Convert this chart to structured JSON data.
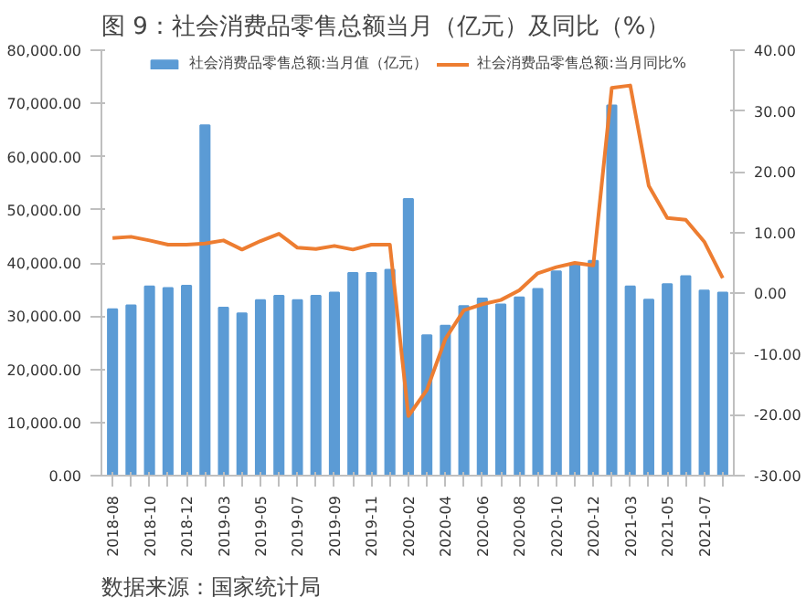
{
  "chart_data": {
    "type": "bar",
    "title": "图 9：社会消费品零售总额当月（亿元）及同比（%）",
    "categories": [
      "2018-08",
      null,
      "2018-10",
      null,
      "2018-12",
      null,
      "2019-03",
      null,
      "2019-05",
      null,
      "2019-07",
      null,
      "2019-09",
      null,
      "2019-11",
      null,
      "2020-02",
      null,
      "2020-04",
      null,
      "2020-06",
      null,
      "2020-08",
      null,
      "2020-10",
      null,
      "2020-12",
      null,
      "2021-03",
      null,
      "2021-05",
      null,
      "2021-07",
      null
    ],
    "series": [
      {
        "name": "社会消费品零售总额:当月值（亿元）",
        "color": "#5b9bd5",
        "values": [
          31300,
          32000,
          35600,
          35300,
          35700,
          65900,
          31600,
          30500,
          33000,
          33800,
          33000,
          33800,
          34400,
          38100,
          38100,
          38700,
          52000,
          26400,
          28200,
          31900,
          33300,
          32200,
          33500,
          35100,
          38400,
          39600,
          40400,
          69600,
          35600,
          33100,
          36000,
          37500,
          34800,
          34400
        ]
      },
      {
        "name": "社会消费品零售总额:当月同比%",
        "type": "line",
        "axis": "y2",
        "color": "#ed7d31",
        "values": [
          9.1,
          9.3,
          8.7,
          8.0,
          8.0,
          8.2,
          8.7,
          7.2,
          8.6,
          9.8,
          7.5,
          7.3,
          7.8,
          7.2,
          8.0,
          8.0,
          -20.2,
          -15.9,
          -7.5,
          -2.8,
          -1.8,
          -1.1,
          0.5,
          3.3,
          4.3,
          5.0,
          4.6,
          33.8,
          34.2,
          17.7,
          12.4,
          12.1,
          8.5,
          2.5
        ]
      }
    ],
    "ylim": [
      0,
      80000
    ],
    "yticks": [
      {
        "value": 0,
        "label": "0.00"
      },
      {
        "value": 10000,
        "label": "10,000.00"
      },
      {
        "value": 20000,
        "label": "20,000.00"
      },
      {
        "value": 30000,
        "label": "30,000.00"
      },
      {
        "value": 40000,
        "label": "40,000.00"
      },
      {
        "value": 50000,
        "label": "50,000.00"
      },
      {
        "value": 60000,
        "label": "60,000.00"
      },
      {
        "value": 70000,
        "label": "70,000.00"
      },
      {
        "value": 80000,
        "label": "80,000.00"
      }
    ],
    "y2lim": [
      -30,
      40
    ],
    "y2ticks": [
      {
        "value": -30,
        "label": "-30.00"
      },
      {
        "value": -20,
        "label": "-20.00"
      },
      {
        "value": -10,
        "label": "-10.00"
      },
      {
        "value": 0,
        "label": "0.00"
      },
      {
        "value": 10,
        "label": "10.00"
      },
      {
        "value": 20,
        "label": "20.00"
      },
      {
        "value": 30,
        "label": "30.00"
      },
      {
        "value": 40,
        "label": "40.00"
      }
    ],
    "legend": "top",
    "grid": false,
    "annotations": [
      "数据来源：国家统计局"
    ]
  }
}
